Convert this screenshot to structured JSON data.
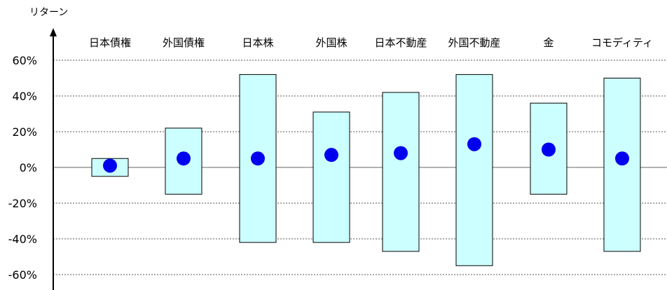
{
  "chart_data": {
    "type": "range_bar",
    "ylabel": "リターン",
    "ylim": [
      -70,
      70
    ],
    "yticks": [
      60,
      40,
      20,
      0,
      -20,
      -40,
      -60
    ],
    "ytick_labels": [
      "60%",
      "40%",
      "20%",
      "0%",
      "-20%",
      "-40%",
      "-60%"
    ],
    "grid": true,
    "categories": [
      "日本債権",
      "外国債権",
      "日本株",
      "外国株",
      "日本不動産",
      "外国不動産",
      "金",
      "コモディティ"
    ],
    "series": [
      {
        "values_high": [
          5,
          22,
          52,
          31,
          42,
          52,
          36,
          50
        ]
      },
      {
        "values_low": [
          -5,
          -15,
          -42,
          -42,
          -47,
          -55,
          -15,
          -47
        ]
      },
      {
        "values_point": [
          1,
          5,
          5,
          7,
          8,
          13,
          10,
          5
        ]
      }
    ],
    "colors": {
      "box_fill": "#ccffff",
      "box_stroke": "#000000",
      "marker": "#0000ee",
      "grid": "#555555",
      "axis": "#000000"
    }
  }
}
